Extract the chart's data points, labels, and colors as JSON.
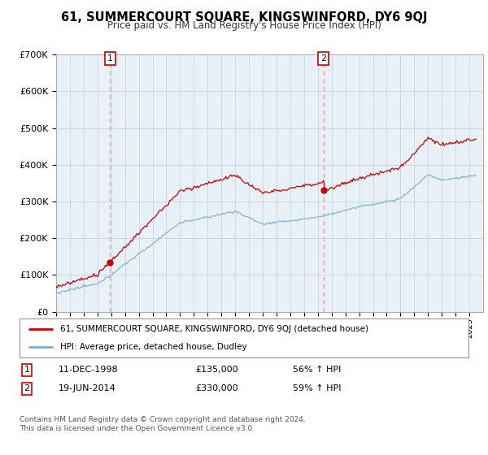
{
  "title": "61, SUMMERCOURT SQUARE, KINGSWINFORD, DY6 9QJ",
  "subtitle": "Price paid vs. HM Land Registry's House Price Index (HPI)",
  "sale1_label": "11-DEC-1998",
  "sale1_price": 135000,
  "sale1_hpi_pct": "56% ↑ HPI",
  "sale2_label": "19-JUN-2014",
  "sale2_price": 330000,
  "sale2_hpi_pct": "59% ↑ HPI",
  "legend1": "61, SUMMERCOURT SQUARE, KINGSWINFORD, DY6 9QJ (detached house)",
  "legend2": "HPI: Average price, detached house, Dudley",
  "footer": "Contains HM Land Registry data © Crown copyright and database right 2024.\nThis data is licensed under the Open Government Licence v3.0.",
  "ylim": [
    0,
    700000
  ],
  "yticks": [
    0,
    100000,
    200000,
    300000,
    400000,
    500000,
    600000,
    700000
  ],
  "ytick_labels": [
    "£0",
    "£100K",
    "£200K",
    "£300K",
    "£400K",
    "£500K",
    "£600K",
    "£700K"
  ],
  "price_color": "#cc0000",
  "hpi_color": "#7bafd4",
  "vline_color": "#ff9999",
  "plot_bg_color": "#e8f0f8",
  "background_color": "#ffffff",
  "grid_color": "#c8d4e0"
}
